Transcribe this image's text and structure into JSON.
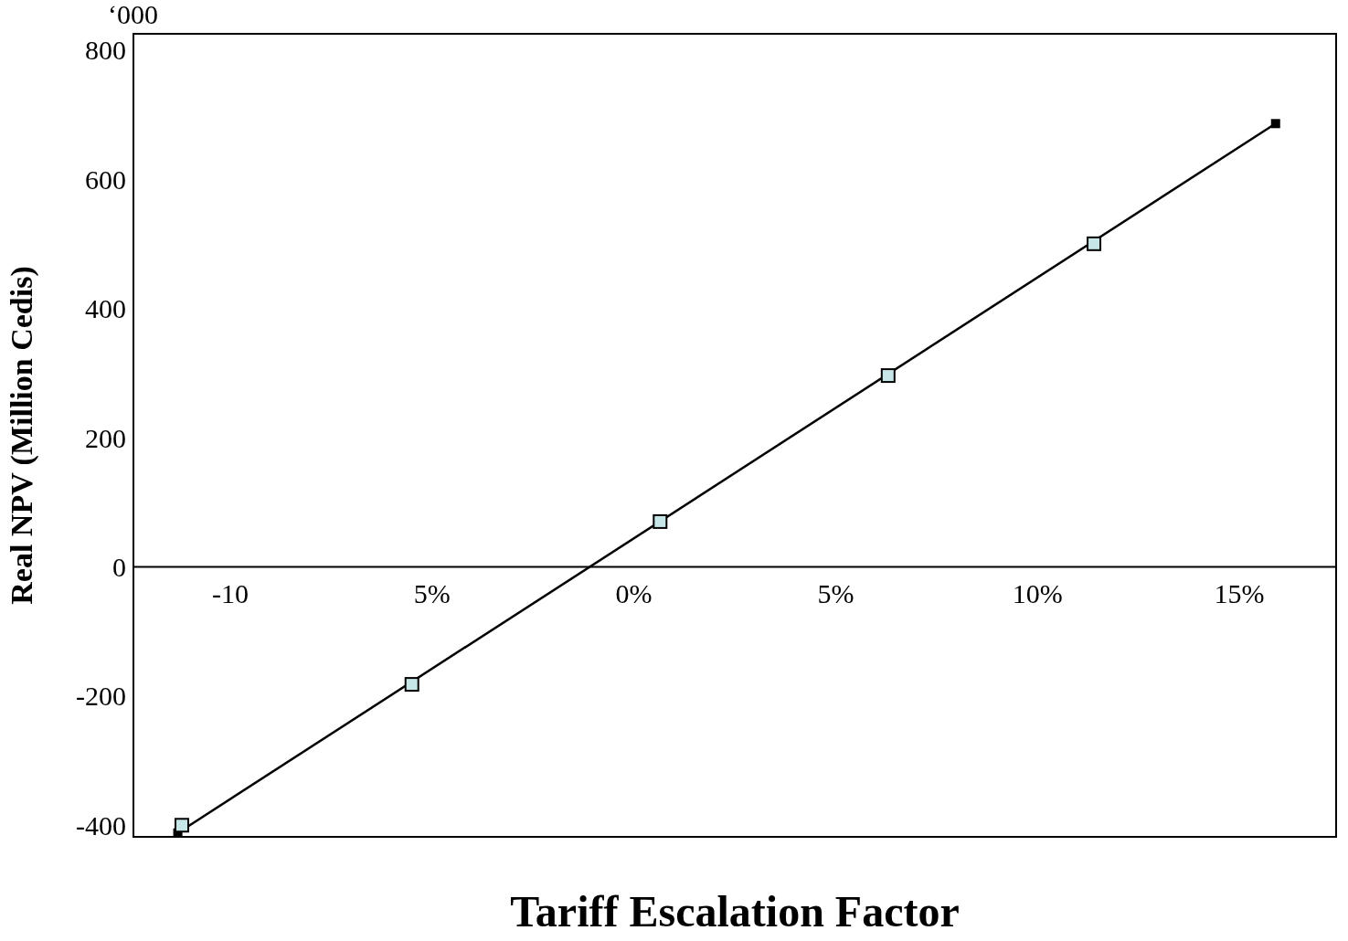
{
  "chart_data": {
    "type": "scatter",
    "xlabel": "Tariff Escalation Factor",
    "ylabel": "Real NPV (Million Cedis)",
    "annotations": [
      "‘000"
    ],
    "xlim": [
      -12.4,
      17.4
    ],
    "xticks": [
      {
        "value": -10,
        "label": "-10"
      },
      {
        "value": -5,
        "label": "5%"
      },
      {
        "value": 0,
        "label": "0%"
      },
      {
        "value": 5,
        "label": "5%"
      },
      {
        "value": 10,
        "label": "10%"
      },
      {
        "value": 15,
        "label": "15%"
      }
    ],
    "ylim": [
      -418,
      825
    ],
    "yticks": [
      -400,
      -200,
      0,
      200,
      400,
      600,
      800
    ],
    "grid": false,
    "legend": false,
    "marker": "square",
    "series": [
      {
        "type": "line",
        "color": "#000000",
        "x": [
          -11.3,
          15.9
        ],
        "values": [
          -412,
          686
        ],
        "line_style": "solid"
      },
      {
        "color": "#c6e6e8",
        "x": [
          -11.2,
          -5.5,
          0.65,
          6.3,
          11.4
        ],
        "values": [
          -400,
          -182,
          70,
          296,
          500
        ]
      }
    ]
  }
}
